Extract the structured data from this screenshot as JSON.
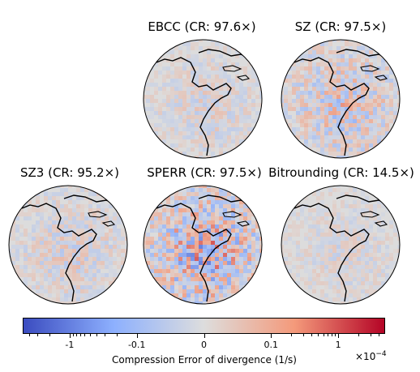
{
  "chart_data": {
    "type": "heatmap",
    "description_type": "orthographic globe maps of compression error",
    "panels": [
      {
        "title": "EBCC (CR: 97.6×)",
        "method": "EBCC",
        "compression_ratio": 97.6,
        "error_intensity": 0.35
      },
      {
        "title": "SZ (CR: 97.5×)",
        "method": "SZ",
        "compression_ratio": 97.5,
        "error_intensity": 0.6
      },
      {
        "title": "SZ3 (CR: 95.2×)",
        "method": "SZ3",
        "compression_ratio": 95.2,
        "error_intensity": 0.4
      },
      {
        "title": "SPERR (CR: 97.5×)",
        "method": "SPERR",
        "compression_ratio": 97.5,
        "error_intensity": 0.85
      },
      {
        "title": "Bitrounding (CR: 14.5×)",
        "method": "Bitrounding",
        "compression_ratio": 14.5,
        "error_intensity": 0.3
      }
    ],
    "colorbar": {
      "colormap": "coolwarm",
      "scale": "symlog",
      "label": "Compression Error of divergence (1/s)",
      "multiplier_base": "×10",
      "multiplier_exp": "−4",
      "range": [
        -5,
        5
      ],
      "ticks": [
        {
          "value": -1,
          "label": "-1"
        },
        {
          "value": -0.1,
          "label": "-0.1"
        },
        {
          "value": 0,
          "label": "0"
        },
        {
          "value": 0.1,
          "label": "0.1"
        },
        {
          "value": 1,
          "label": "1"
        }
      ]
    }
  }
}
